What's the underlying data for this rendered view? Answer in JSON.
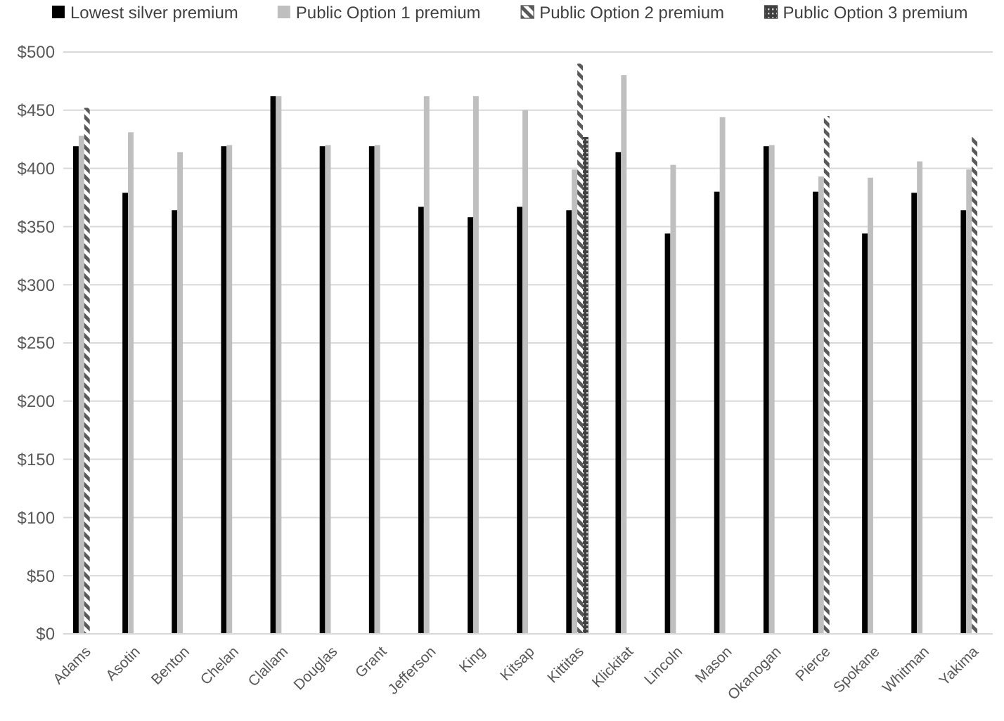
{
  "chart_data": {
    "type": "bar",
    "categories": [
      "Adams",
      "Asotin",
      "Benton",
      "Chelan",
      "Clallam",
      "Douglas",
      "Grant",
      "Jefferson",
      "King",
      "Kitsap",
      "Kittitas",
      "Klickitat",
      "Lincoln",
      "Mason",
      "Okanogan",
      "Pierce",
      "Spokane",
      "Whitman",
      "Yakima"
    ],
    "series": [
      {
        "name": "Lowest silver premium",
        "color": "#000000",
        "values": [
          419,
          379,
          364,
          419,
          462,
          419,
          419,
          367,
          358,
          367,
          364,
          414,
          344,
          380,
          419,
          380,
          344,
          379,
          364
        ]
      },
      {
        "name": "Public Option 1 premium",
        "color": "#bfbfbf",
        "values": [
          428,
          431,
          414,
          420,
          462,
          420,
          420,
          462,
          462,
          450,
          399,
          480,
          403,
          444,
          420,
          393,
          392,
          406,
          399
        ]
      },
      {
        "name": "Public Option 2 premium",
        "color": "#595959",
        "values": [
          452,
          null,
          null,
          null,
          null,
          null,
          null,
          null,
          null,
          null,
          490,
          null,
          null,
          null,
          null,
          445,
          null,
          null,
          427
        ]
      },
      {
        "name": "Public Option 3 premium",
        "color": "#404040",
        "values": [
          null,
          null,
          null,
          null,
          null,
          null,
          null,
          null,
          null,
          null,
          427,
          null,
          null,
          null,
          null,
          null,
          null,
          null,
          null
        ]
      }
    ],
    "ylim": [
      0,
      500
    ],
    "yticks": [
      {
        "value": 0,
        "label": "$0"
      },
      {
        "value": 50,
        "label": "$50"
      },
      {
        "value": 100,
        "label": "$100"
      },
      {
        "value": 150,
        "label": "$150"
      },
      {
        "value": 200,
        "label": "$200"
      },
      {
        "value": 250,
        "label": "$250"
      },
      {
        "value": 300,
        "label": "$300"
      },
      {
        "value": 350,
        "label": "$350"
      },
      {
        "value": 400,
        "label": "$400"
      },
      {
        "value": 450,
        "label": "$450"
      },
      {
        "value": 500,
        "label": "$500"
      }
    ],
    "grid": "y",
    "legend": "top"
  }
}
